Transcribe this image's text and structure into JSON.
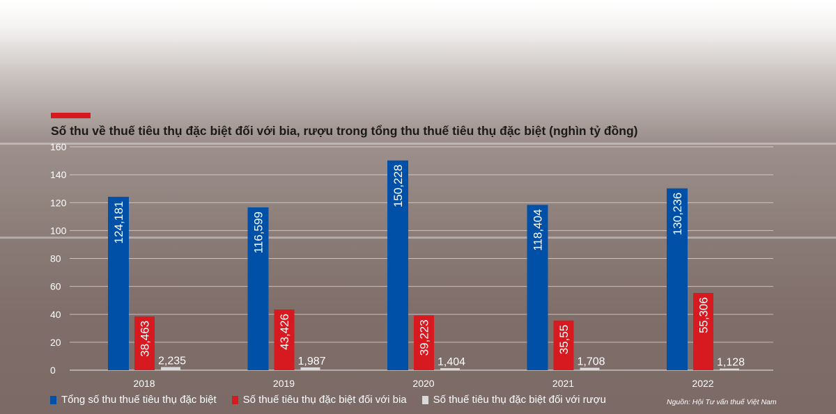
{
  "colors": {
    "accent": "#d71920",
    "total": "#0050a8",
    "beer": "#d71920",
    "liquor": "#d9d9d9"
  },
  "title": "Số thu về thuế tiêu thụ đặc biệt đối với bia, rượu trong tổng thu thuế tiêu thụ đặc biệt (nghìn tỷ đồng)",
  "legend": [
    "Tổng số thu thuế tiêu thụ đặc biệt",
    "Số thuế tiêu thụ đặc biệt đối với bia",
    "Số thuế tiêu thụ đặc biệt đối với rượu"
  ],
  "source": "Nguồn: Hội Tư vấn thuế Việt Nam",
  "chart_data": {
    "type": "bar",
    "title": "Số thu về thuế tiêu thụ đặc biệt đối với bia, rượu trong tổng thu thuế tiêu thụ đặc biệt (nghìn tỷ đồng)",
    "categories": [
      "2018",
      "2019",
      "2020",
      "2021",
      "2022"
    ],
    "ylim": [
      0,
      160
    ],
    "yticks": [
      "0",
      "20",
      "40",
      "60",
      "80",
      "100",
      "120",
      "140",
      "160"
    ],
    "grid": true,
    "legend_position": "bottom",
    "series": [
      {
        "name": "Tổng số thu thuế tiêu thụ đặc biệt",
        "values": [
          124.181,
          116.599,
          150.228,
          118.404,
          130.236
        ],
        "labels": [
          "124,181",
          "116,599",
          "150,228",
          "118,404",
          "130,236"
        ]
      },
      {
        "name": "Số thuế tiêu thụ đặc biệt đối với bia",
        "values": [
          38.463,
          43.426,
          39.223,
          35.55,
          55.306
        ],
        "labels": [
          "38,463",
          "43,426",
          "39,223",
          "35,55",
          "55,306"
        ]
      },
      {
        "name": "Số thuế tiêu thụ đặc biệt đối với rượu",
        "values": [
          2.235,
          1.987,
          1.404,
          1.708,
          1.128
        ],
        "labels": [
          "2,235",
          "1,987",
          "1,404",
          "1,708",
          "1,128"
        ]
      }
    ]
  }
}
